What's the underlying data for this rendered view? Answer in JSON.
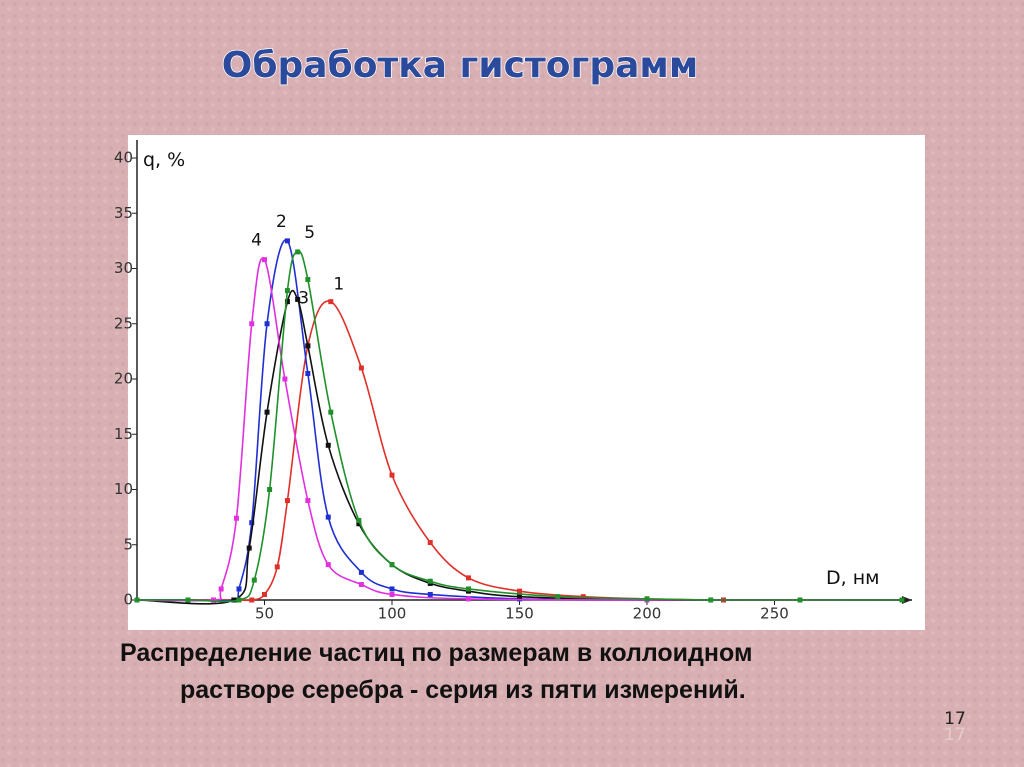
{
  "chart_data": {
    "type": "line",
    "title": "Обработка гистограмм",
    "caption": [
      "Распределение частиц по размерам в коллоидном",
      "растворе серебра - серия из пяти измерений."
    ],
    "x_label": "D, нм",
    "y_label": "q, %",
    "xlim": [
      0,
      300
    ],
    "ylim": [
      0,
      40
    ],
    "xticks": [
      50,
      100,
      150,
      200,
      250
    ],
    "yticks": [
      0,
      5,
      10,
      15,
      20,
      25,
      30,
      35,
      40
    ],
    "series": [
      {
        "name": "1",
        "color": "#e0302a",
        "x": [
          0,
          20,
          40,
          45,
          50,
          55,
          59,
          67,
          76,
          88,
          100,
          115,
          130,
          150,
          175,
          200,
          230,
          260,
          300
        ],
        "values": [
          0,
          0,
          0,
          0,
          0.5,
          3,
          9,
          23,
          27,
          21,
          11.3,
          5.2,
          2,
          0.8,
          0.3,
          0.1,
          0,
          0,
          0
        ]
      },
      {
        "name": "2",
        "color": "#2030d0",
        "x": [
          0,
          20,
          38,
          40,
          45,
          51,
          59,
          67,
          75,
          88,
          100,
          115,
          150,
          200,
          260,
          300
        ],
        "values": [
          0,
          0,
          0,
          1,
          7,
          25,
          32.5,
          20.5,
          7.5,
          2.5,
          1,
          0.5,
          0.1,
          0,
          0,
          0
        ]
      },
      {
        "name": "3",
        "color": "#111111",
        "x": [
          0,
          38,
          44,
          51,
          59,
          63,
          67,
          75,
          87,
          100,
          115,
          130,
          150,
          200,
          260,
          300
        ],
        "values": [
          0,
          0,
          4.7,
          17,
          27,
          27.2,
          23,
          14,
          6.9,
          3.2,
          1.5,
          0.8,
          0.3,
          0,
          0,
          0
        ]
      },
      {
        "name": "4",
        "color": "#e030e0",
        "x": [
          0,
          30,
          33,
          39,
          45,
          50,
          58,
          67,
          75,
          88,
          100,
          130,
          200,
          300
        ],
        "values": [
          0,
          0,
          1,
          7.4,
          25,
          30.8,
          20,
          9,
          3.2,
          1.4,
          0.5,
          0.1,
          0,
          0
        ]
      },
      {
        "name": "5",
        "color": "#20902a",
        "x": [
          0,
          20,
          40,
          46,
          52,
          59,
          63,
          67,
          76,
          87,
          100,
          115,
          130,
          165,
          200,
          225,
          260,
          300
        ],
        "values": [
          0,
          0,
          0,
          1.8,
          10,
          28,
          31.5,
          29,
          17,
          7.2,
          3.2,
          1.7,
          1,
          0.3,
          0.1,
          0,
          0,
          0
        ]
      }
    ]
  },
  "slide_number": "17"
}
